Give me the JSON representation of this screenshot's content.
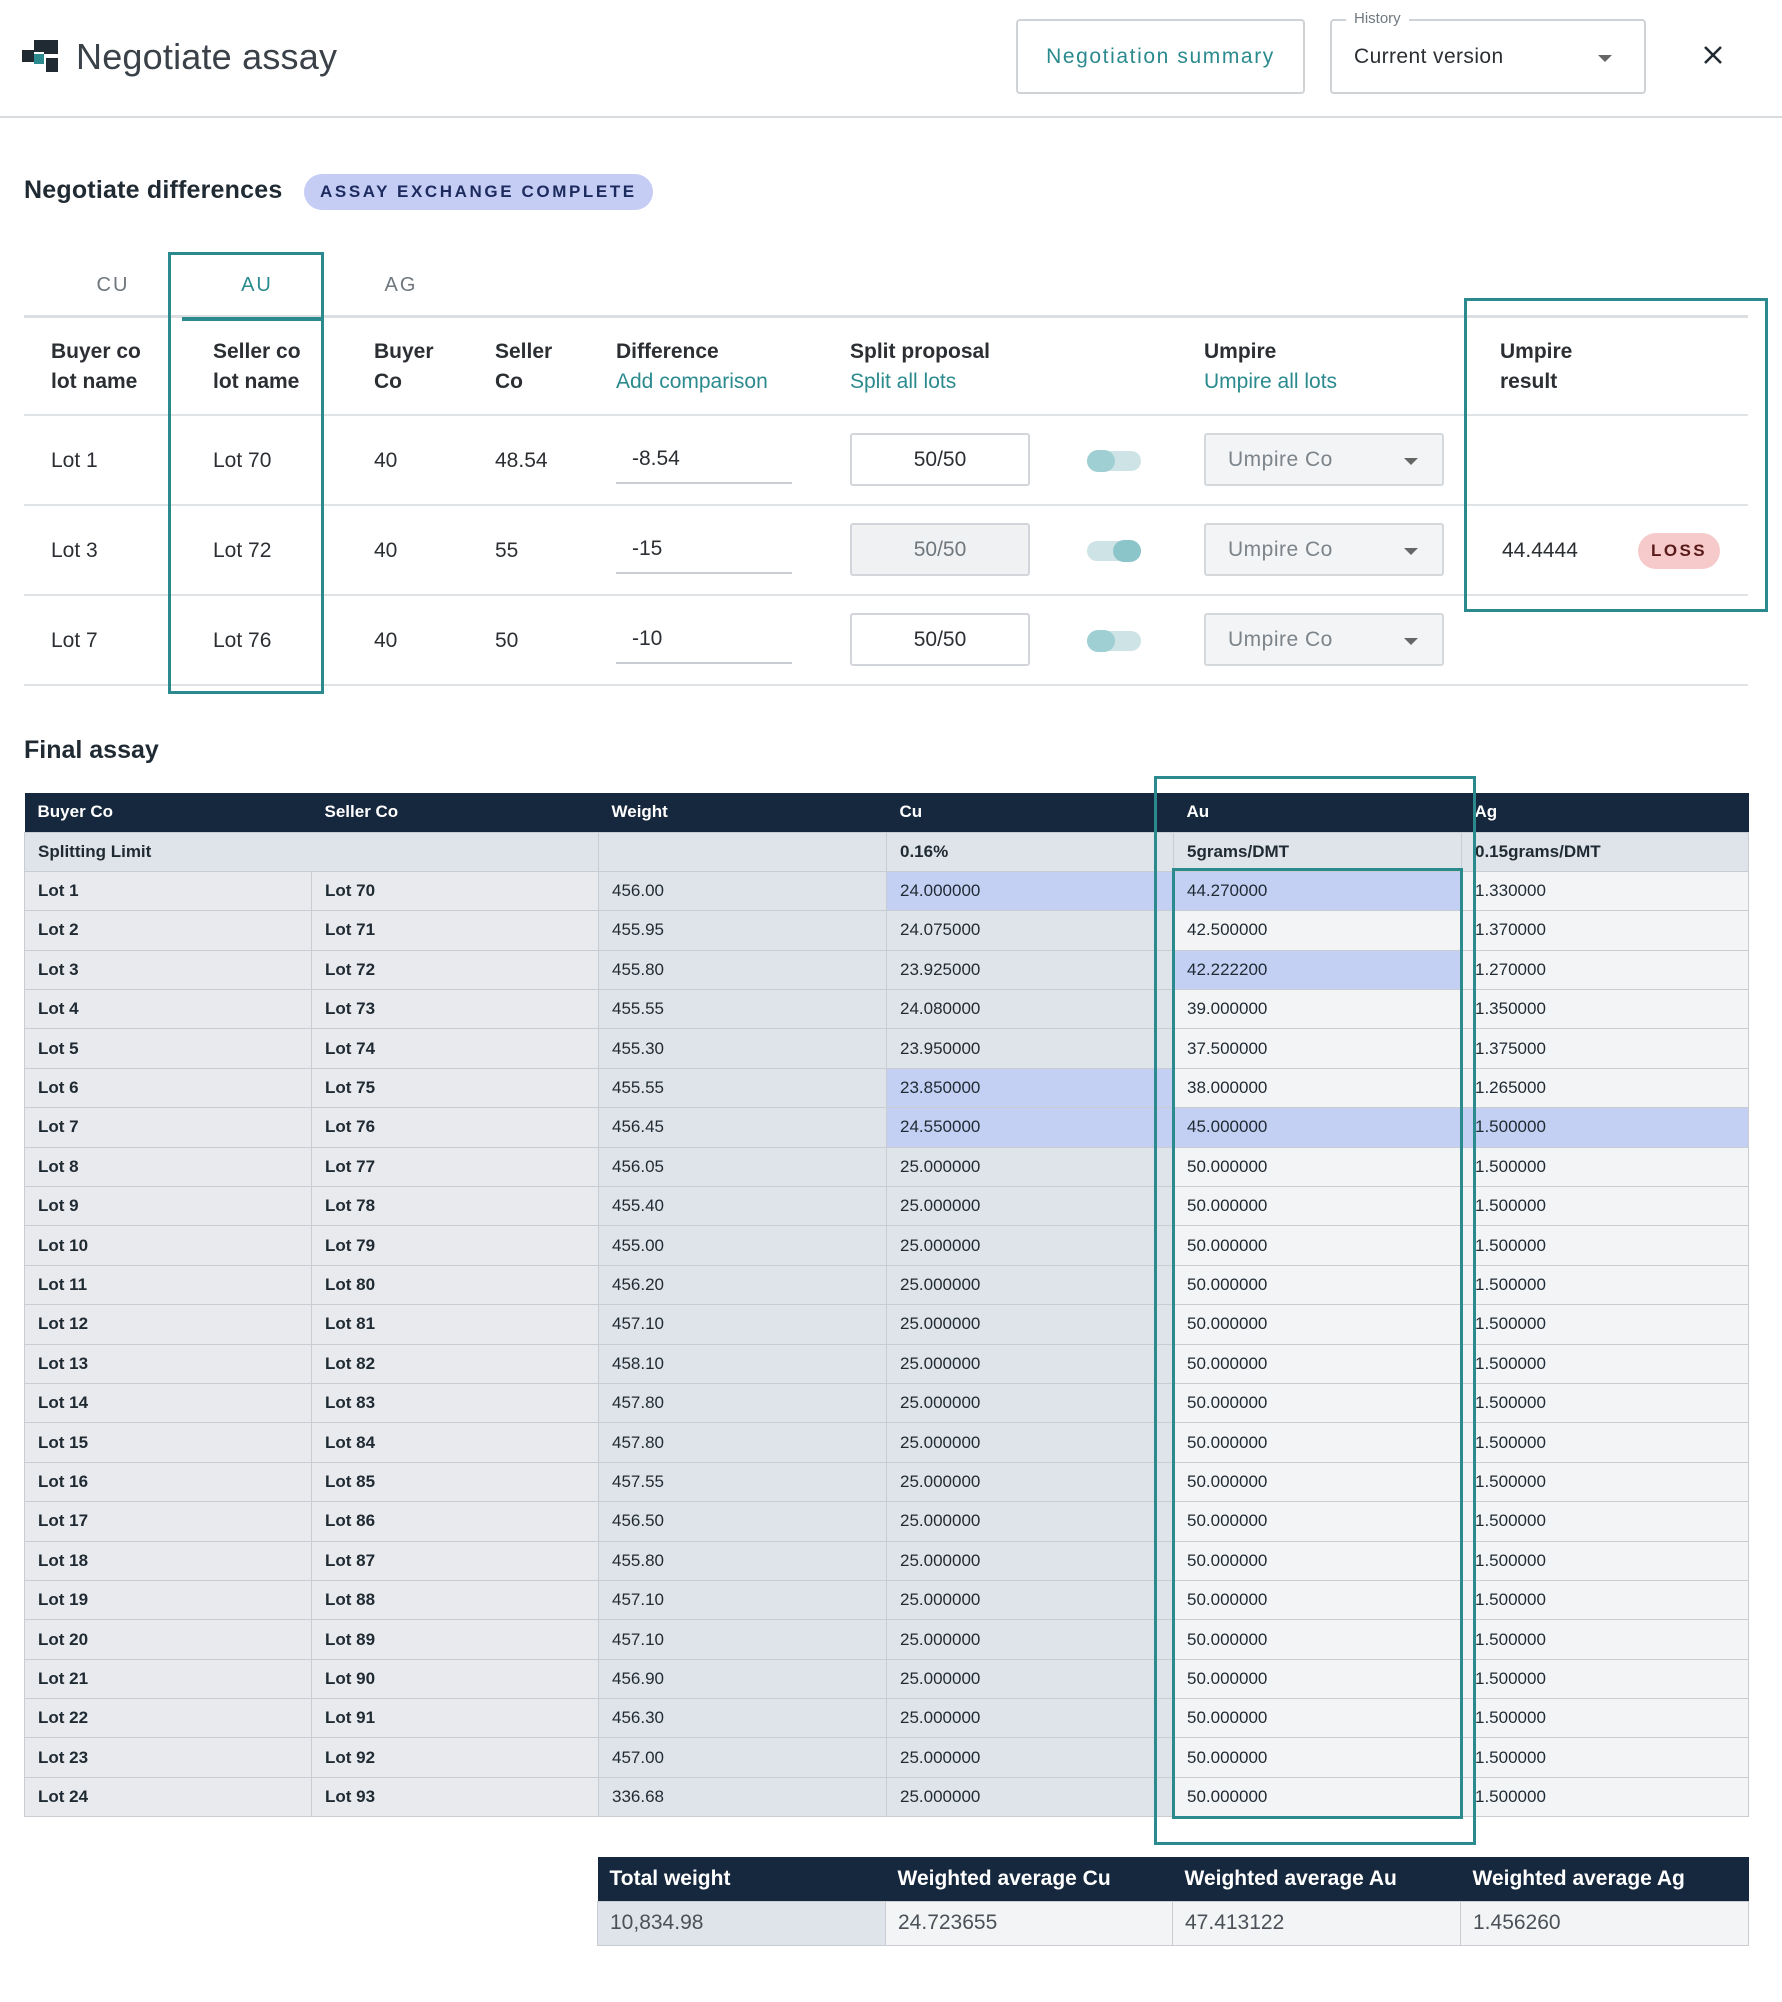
{
  "header": {
    "title": "Negotiate assay",
    "summary_button": "Negotiation summary",
    "history_label": "History",
    "history_value": "Current version"
  },
  "negotiate": {
    "title": "Negotiate differences",
    "status": "ASSAY EXCHANGE COMPLETE",
    "tabs": [
      "CU",
      "AU",
      "AG"
    ],
    "active_tab": "AU",
    "headers": {
      "buyer_lot_1": "Buyer co",
      "buyer_lot_2": "lot name",
      "seller_lot_1": "Seller co",
      "seller_lot_2": "lot name",
      "buyer_co_1": "Buyer",
      "buyer_co_2": "Co",
      "seller_co_1": "Seller",
      "seller_co_2": "Co",
      "difference": "Difference",
      "add_comparison": "Add comparison",
      "split_proposal": "Split proposal",
      "split_all": "Split all lots",
      "umpire": "Umpire",
      "umpire_all": "Umpire all lots",
      "result_1": "Umpire",
      "result_2": "result"
    },
    "rows": [
      {
        "buyer_lot": "Lot 1",
        "seller_lot": "Lot 70",
        "buyer": "40",
        "seller": "48.54",
        "difference": "-8.54",
        "split": "50/50",
        "umpire": "Umpire Co",
        "result": "",
        "badge": ""
      },
      {
        "buyer_lot": "Lot 3",
        "seller_lot": "Lot 72",
        "buyer": "40",
        "seller": "55",
        "difference": "-15",
        "split": "50/50",
        "umpire": "Umpire Co",
        "result": "44.4444",
        "badge": "LOSS"
      },
      {
        "buyer_lot": "Lot 7",
        "seller_lot": "Lot 76",
        "buyer": "40",
        "seller": "50",
        "difference": "-10",
        "split": "50/50",
        "umpire": "Umpire Co",
        "result": "",
        "badge": ""
      }
    ]
  },
  "final_assay": {
    "title": "Final assay",
    "columns": [
      "Buyer Co",
      "Seller Co",
      "Weight",
      "Cu",
      "Au",
      "Ag"
    ],
    "limit_label": "Splitting Limit",
    "limits": {
      "cu": "0.16%",
      "au": "5grams/DMT",
      "ag": "0.15grams/DMT"
    },
    "rows": [
      [
        "Lot 1",
        "Lot 70",
        "456.00",
        "24.000000",
        "44.270000",
        "1.330000"
      ],
      [
        "Lot 2",
        "Lot 71",
        "455.95",
        "24.075000",
        "42.500000",
        "1.370000"
      ],
      [
        "Lot 3",
        "Lot 72",
        "455.80",
        "23.925000",
        "42.222200",
        "1.270000"
      ],
      [
        "Lot 4",
        "Lot 73",
        "455.55",
        "24.080000",
        "39.000000",
        "1.350000"
      ],
      [
        "Lot 5",
        "Lot 74",
        "455.30",
        "23.950000",
        "37.500000",
        "1.375000"
      ],
      [
        "Lot 6",
        "Lot 75",
        "455.55",
        "23.850000",
        "38.000000",
        "1.265000"
      ],
      [
        "Lot 7",
        "Lot 76",
        "456.45",
        "24.550000",
        "45.000000",
        "1.500000"
      ],
      [
        "Lot 8",
        "Lot 77",
        "456.05",
        "25.000000",
        "50.000000",
        "1.500000"
      ],
      [
        "Lot 9",
        "Lot 78",
        "455.40",
        "25.000000",
        "50.000000",
        "1.500000"
      ],
      [
        "Lot 10",
        "Lot 79",
        "455.00",
        "25.000000",
        "50.000000",
        "1.500000"
      ],
      [
        "Lot 11",
        "Lot 80",
        "456.20",
        "25.000000",
        "50.000000",
        "1.500000"
      ],
      [
        "Lot 12",
        "Lot 81",
        "457.10",
        "25.000000",
        "50.000000",
        "1.500000"
      ],
      [
        "Lot 13",
        "Lot 82",
        "458.10",
        "25.000000",
        "50.000000",
        "1.500000"
      ],
      [
        "Lot 14",
        "Lot 83",
        "457.80",
        "25.000000",
        "50.000000",
        "1.500000"
      ],
      [
        "Lot 15",
        "Lot 84",
        "457.80",
        "25.000000",
        "50.000000",
        "1.500000"
      ],
      [
        "Lot 16",
        "Lot 85",
        "457.55",
        "25.000000",
        "50.000000",
        "1.500000"
      ],
      [
        "Lot 17",
        "Lot 86",
        "456.50",
        "25.000000",
        "50.000000",
        "1.500000"
      ],
      [
        "Lot 18",
        "Lot 87",
        "455.80",
        "25.000000",
        "50.000000",
        "1.500000"
      ],
      [
        "Lot 19",
        "Lot 88",
        "457.10",
        "25.000000",
        "50.000000",
        "1.500000"
      ],
      [
        "Lot 20",
        "Lot 89",
        "457.10",
        "25.000000",
        "50.000000",
        "1.500000"
      ],
      [
        "Lot 21",
        "Lot 90",
        "456.90",
        "25.000000",
        "50.000000",
        "1.500000"
      ],
      [
        "Lot 22",
        "Lot 91",
        "456.30",
        "25.000000",
        "50.000000",
        "1.500000"
      ],
      [
        "Lot 23",
        "Lot 92",
        "457.00",
        "25.000000",
        "50.000000",
        "1.500000"
      ],
      [
        "Lot 24",
        "Lot 93",
        "336.68",
        "25.000000",
        "50.000000",
        "1.500000"
      ]
    ],
    "highlighted": [
      [
        0,
        3
      ],
      [
        0,
        4
      ],
      [
        2,
        4
      ],
      [
        5,
        3
      ],
      [
        6,
        3
      ],
      [
        6,
        4
      ],
      [
        6,
        5
      ]
    ]
  },
  "totals": {
    "headers": [
      "Total weight",
      "Weighted average Cu",
      "Weighted average Au",
      "Weighted average Ag"
    ],
    "values": [
      "10,834.98",
      "24.723655",
      "47.413122",
      "1.456260"
    ]
  },
  "colors": {
    "accent": "#2b8a8e",
    "navy": "#16283e",
    "highlight": "#c4cff4",
    "loss": "#f6caca"
  }
}
